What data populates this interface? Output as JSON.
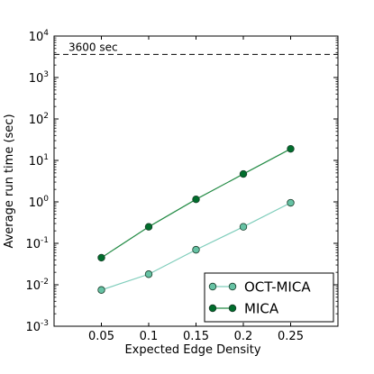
{
  "chart_data": {
    "type": "line",
    "title": "",
    "xlabel": "Expected Edge Density",
    "ylabel": "Average run time (sec)",
    "y_scale": "log",
    "ylim": [
      0.001,
      10000
    ],
    "xlim": [
      0.0,
      0.3
    ],
    "x_ticks": [
      0.05,
      0.1,
      0.15,
      0.2,
      0.25
    ],
    "x_tick_labels": [
      "0.05",
      "0.1",
      "0.15",
      "0.2",
      "0.25"
    ],
    "y_ticks": [
      0.001,
      0.01,
      0.1,
      1,
      10,
      100,
      1000,
      10000
    ],
    "y_tick_labels": [
      {
        "base": "10",
        "exp": "-3"
      },
      {
        "base": "10",
        "exp": "-2"
      },
      {
        "base": "10",
        "exp": "-1"
      },
      {
        "base": "10",
        "exp": "0"
      },
      {
        "base": "10",
        "exp": "1"
      },
      {
        "base": "10",
        "exp": "2"
      },
      {
        "base": "10",
        "exp": "3"
      },
      {
        "base": "10",
        "exp": "4"
      }
    ],
    "x": [
      0.05,
      0.1,
      0.15,
      0.2,
      0.25
    ],
    "series": [
      {
        "name": "OCT-MICA",
        "values": [
          0.0075,
          0.018,
          0.07,
          0.25,
          0.95
        ],
        "color": "#66c2a4",
        "marker_fill": "#66c2a4",
        "line_color": "#7fcdbb"
      },
      {
        "name": "MICA",
        "values": [
          0.045,
          0.25,
          1.15,
          4.7,
          19
        ],
        "color": "#1b7837",
        "marker_fill": "#006d2c",
        "line_color": "#238b45"
      }
    ],
    "reference_line": {
      "value": 3600,
      "label": "3600 sec",
      "style": "dashed",
      "color": "#000000"
    },
    "legend_position": "lower-right",
    "grid": false
  }
}
